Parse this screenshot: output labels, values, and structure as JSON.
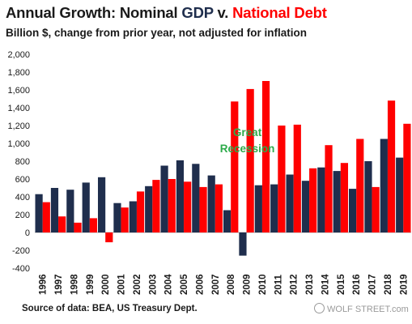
{
  "header": {
    "title_prefix": "Annual Growth: Nominal ",
    "title_gdp": "GDP",
    "title_mid": " v. ",
    "title_debt": "National Debt",
    "subtitle": "Billion $, change from prior year, not adjusted for inflation"
  },
  "footer": {
    "source": "Source of data: BEA, US Treasury Dept.",
    "watermark": "WOLF STREET.com"
  },
  "colors": {
    "gdp": "#1f2e4d",
    "debt": "#ff0000",
    "annotation": "#2eab4b",
    "text": "#1a1a1a",
    "axis": "#b0b0b0"
  },
  "chart_data": {
    "type": "bar",
    "categories": [
      "1996",
      "1997",
      "1998",
      "1999",
      "2000",
      "2001",
      "2002",
      "2003",
      "2004",
      "2005",
      "2006",
      "2007",
      "2008",
      "2009",
      "2010",
      "2011",
      "2012",
      "2013",
      "2014",
      "2015",
      "2016",
      "2017",
      "2018",
      "2019"
    ],
    "series": [
      {
        "name": "GDP",
        "values": [
          430,
          500,
          480,
          560,
          620,
          330,
          350,
          520,
          750,
          810,
          770,
          640,
          250,
          -260,
          530,
          540,
          650,
          580,
          730,
          690,
          490,
          800,
          1050,
          840
        ]
      },
      {
        "name": "National Debt",
        "values": [
          340,
          180,
          110,
          160,
          -110,
          280,
          460,
          590,
          600,
          570,
          510,
          540,
          1470,
          1610,
          1700,
          1200,
          1210,
          720,
          980,
          780,
          1050,
          510,
          1480,
          1220
        ]
      }
    ],
    "ylim": [
      -400,
      2000
    ],
    "yticks": [
      "-400",
      "-200",
      "0",
      "200",
      "400",
      "600",
      "800",
      "1,000",
      "1,200",
      "1,400",
      "1,600",
      "1,800",
      "2,000"
    ],
    "ytick_values": [
      -400,
      -200,
      0,
      200,
      400,
      600,
      800,
      1000,
      1200,
      1400,
      1600,
      1800,
      2000
    ],
    "grid": false,
    "annotation": {
      "lines": [
        "Great",
        "Recession"
      ],
      "x_category": "2009",
      "y_value": 1080
    }
  }
}
